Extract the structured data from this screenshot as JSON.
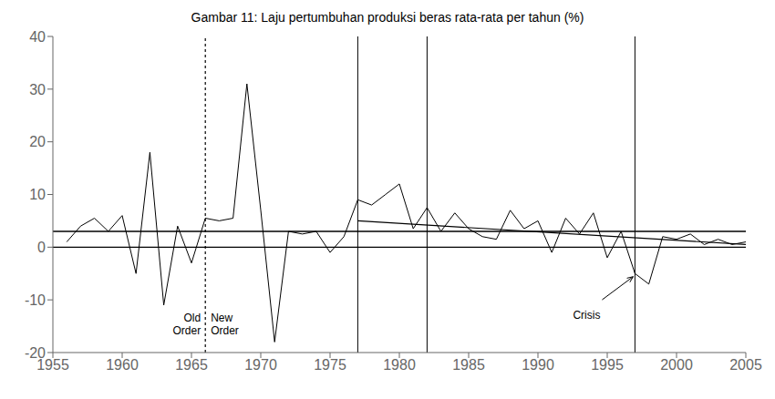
{
  "chart_data": {
    "type": "line",
    "title": "Gambar 11: Laju pertumbuhan produksi beras rata-rata per tahun (%)",
    "x": [
      1956,
      1957,
      1958,
      1959,
      1960,
      1961,
      1962,
      1963,
      1964,
      1965,
      1966,
      1967,
      1968,
      1969,
      1970,
      1971,
      1972,
      1973,
      1974,
      1975,
      1976,
      1977,
      1978,
      1979,
      1980,
      1981,
      1982,
      1983,
      1984,
      1985,
      1986,
      1987,
      1988,
      1989,
      1990,
      1991,
      1992,
      1993,
      1994,
      1995,
      1996,
      1997,
      1998,
      1999,
      2000,
      2001,
      2002,
      2003,
      2004,
      2005
    ],
    "values": [
      1.0,
      4.0,
      5.5,
      3.0,
      6.0,
      -5.0,
      18.0,
      -11.0,
      4.0,
      -3.0,
      5.5,
      5.0,
      5.5,
      31.0,
      7.0,
      -18.0,
      3.0,
      2.5,
      3.0,
      -1.0,
      2.0,
      9.0,
      8.0,
      10.0,
      12.0,
      3.5,
      7.5,
      3.0,
      6.5,
      3.5,
      2.0,
      1.5,
      7.0,
      3.5,
      5.0,
      -1.0,
      5.5,
      2.5,
      6.5,
      -2.0,
      3.0,
      -5.0,
      -7.0,
      2.0,
      1.5,
      2.5,
      0.5,
      1.5,
      0.5,
      1.0
    ],
    "color": "#000000",
    "xlim": [
      1955,
      2005
    ],
    "ylim": [
      -20,
      40
    ],
    "xticks": [
      1955,
      1960,
      1965,
      1970,
      1975,
      1980,
      1985,
      1990,
      1995,
      2000,
      2005
    ],
    "yticks": [
      -20,
      -10,
      0,
      10,
      20,
      30,
      40
    ],
    "grid": false,
    "hlines": [
      3.0,
      0
    ],
    "vlines": [
      {
        "value": 1966,
        "line_style": "dotted"
      },
      {
        "value": 1977,
        "line_style": "solid"
      },
      {
        "value": 1982,
        "line_style": "solid"
      },
      {
        "value": 1997,
        "line_style": "solid"
      }
    ],
    "trend": {
      "x": [
        1977,
        2005
      ],
      "values": [
        5.0,
        0.5
      ]
    },
    "annotations": [
      {
        "text": "Old\nOrder",
        "x": 1966
      },
      {
        "text": "New\nOrder",
        "x": 1966
      },
      {
        "text": "Crisis",
        "x": 1997,
        "arrow": true
      }
    ]
  }
}
